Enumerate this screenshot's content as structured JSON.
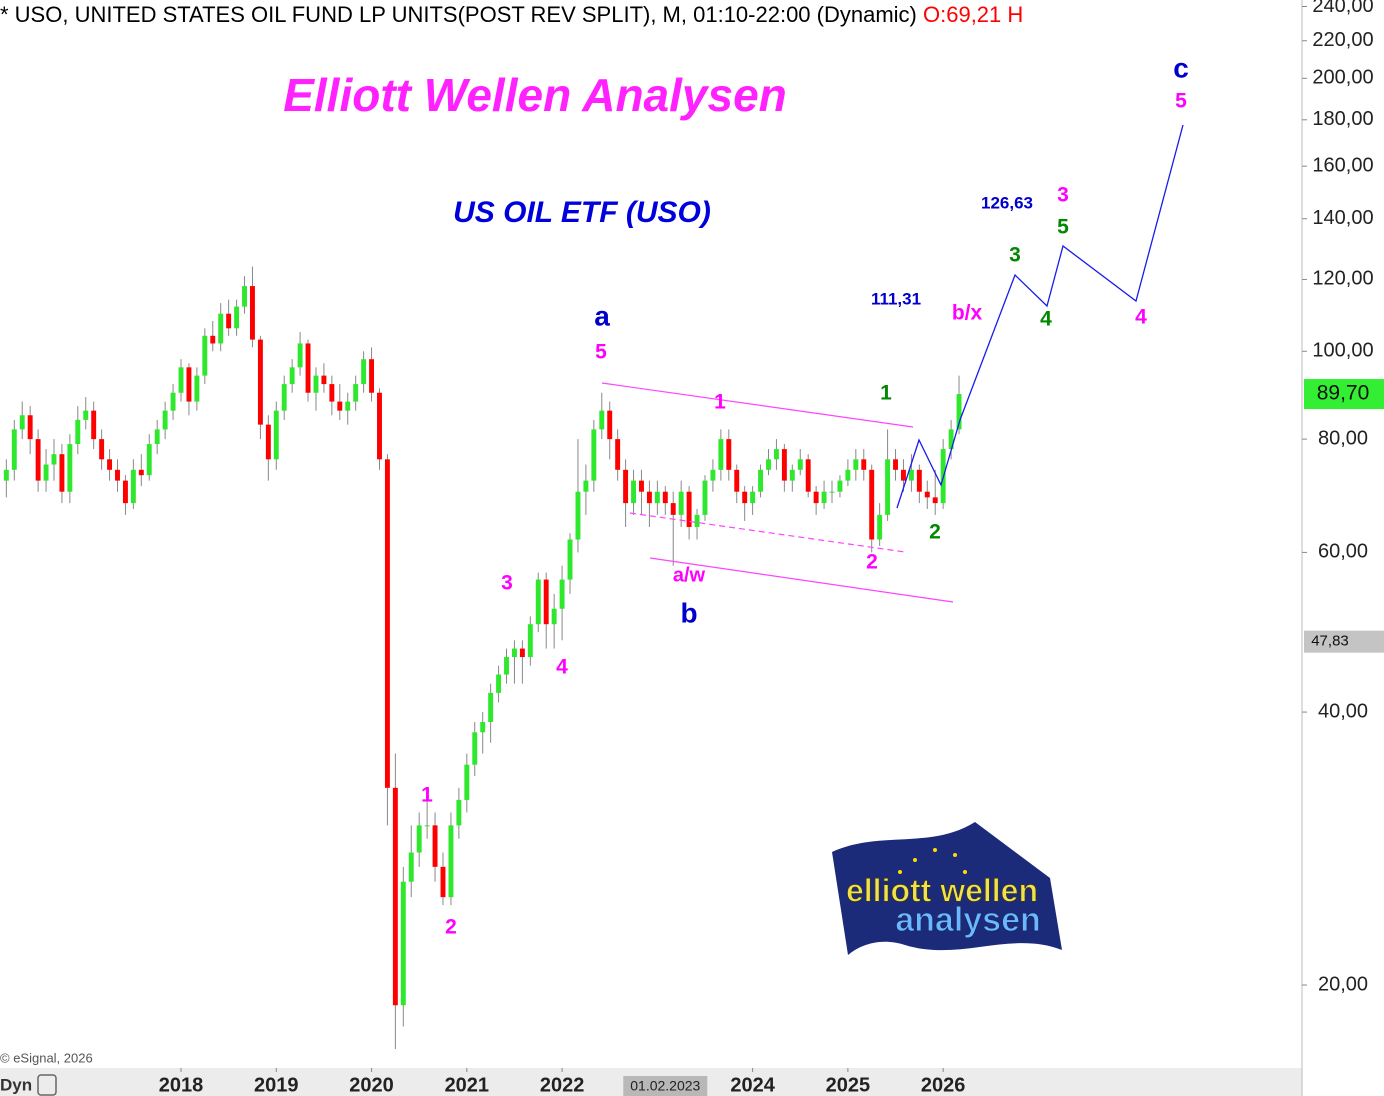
{
  "chart_data": {
    "type": "candlestick",
    "title": "* USO, UNITED STATES OIL FUND LP UNITS(POST REV SPLIT), M, 01:10-22:00 (Dynamic) ",
    "title_quote": "O:69,21 H",
    "heading": "Elliott Wellen Analysen",
    "subtitle": "US OIL ETF (USO)",
    "copyright": "© eSignal, 2026",
    "mode_label": "Dyn",
    "logo": [
      "elliott wellen",
      "analysen"
    ],
    "log_scale": true,
    "up_color": "#2ee82e",
    "down_color": "#ff0000",
    "ylim": [
      16.2,
      244
    ],
    "yticks": [
      {
        "value": 20,
        "label": "20,00"
      },
      {
        "value": 40,
        "label": "40,00"
      },
      {
        "value": 60,
        "label": "60,00"
      },
      {
        "value": 80,
        "label": "80,00"
      },
      {
        "value": 100,
        "label": "100,00"
      },
      {
        "value": 120,
        "label": "120,00"
      },
      {
        "value": 140,
        "label": "140,00"
      },
      {
        "value": 160,
        "label": "160,00"
      },
      {
        "value": 180,
        "label": "180,00"
      },
      {
        "value": 200,
        "label": "200,00"
      },
      {
        "value": 220,
        "label": "220,00"
      },
      {
        "value": 240,
        "label": "240,00"
      }
    ],
    "xlim": [
      -0.8,
      163.2
    ],
    "xticks": [
      {
        "value": 22,
        "label": "2018"
      },
      {
        "value": 34,
        "label": "2019"
      },
      {
        "value": 46,
        "label": "2020"
      },
      {
        "value": 58,
        "label": "2021"
      },
      {
        "value": 70,
        "label": "2022"
      },
      {
        "value": 94,
        "label": "2024"
      },
      {
        "value": 106,
        "label": "2025"
      },
      {
        "value": 118,
        "label": "2026"
      }
    ],
    "x_cursor": {
      "value": 83,
      "label": "01.02.2023"
    },
    "price_labels": [
      {
        "value": 89.7,
        "label": "89,70",
        "color": "#33ee33"
      },
      {
        "value": 47.83,
        "label": "47,83",
        "color": "#c4c4c4"
      }
    ],
    "candles": [
      [
        72,
        76,
        69,
        74
      ],
      [
        74,
        84,
        72,
        82
      ],
      [
        82,
        88,
        80,
        85
      ],
      [
        85,
        87,
        77,
        80
      ],
      [
        80,
        82,
        70,
        72
      ],
      [
        72,
        78,
        70,
        75
      ],
      [
        75,
        80,
        72,
        77
      ],
      [
        77,
        79,
        68,
        70
      ],
      [
        70,
        81,
        68,
        79
      ],
      [
        79,
        87,
        77,
        84
      ],
      [
        84,
        89,
        82,
        86
      ],
      [
        86,
        88,
        78,
        80
      ],
      [
        80,
        82,
        74,
        76
      ],
      [
        76,
        78,
        72,
        74
      ],
      [
        74,
        76,
        70,
        72
      ],
      [
        72,
        73,
        66,
        68
      ],
      [
        68,
        76,
        67,
        74
      ],
      [
        74,
        77,
        71,
        73
      ],
      [
        73,
        81,
        72,
        79
      ],
      [
        79,
        84,
        77,
        82
      ],
      [
        82,
        88,
        80,
        86
      ],
      [
        86,
        92,
        84,
        90
      ],
      [
        90,
        98,
        88,
        96
      ],
      [
        96,
        97,
        85,
        88
      ],
      [
        88,
        96,
        86,
        94
      ],
      [
        94,
        106,
        92,
        104
      ],
      [
        104,
        108,
        100,
        102
      ],
      [
        102,
        113,
        100,
        110
      ],
      [
        110,
        114,
        104,
        106
      ],
      [
        106,
        114,
        104,
        112
      ],
      [
        112,
        121,
        110,
        118
      ],
      [
        118,
        124,
        101,
        103
      ],
      [
        103,
        104,
        80,
        83
      ],
      [
        83,
        85,
        72,
        76
      ],
      [
        76,
        88,
        74,
        86
      ],
      [
        86,
        94,
        84,
        92
      ],
      [
        92,
        98,
        90,
        96
      ],
      [
        96,
        105,
        94,
        102
      ],
      [
        102,
        103,
        88,
        90
      ],
      [
        90,
        96,
        86,
        94
      ],
      [
        94,
        97,
        90,
        92
      ],
      [
        92,
        94,
        85,
        88
      ],
      [
        88,
        92,
        84,
        86
      ],
      [
        86,
        90,
        83,
        88
      ],
      [
        88,
        94,
        86,
        92
      ],
      [
        92,
        100,
        90,
        98
      ],
      [
        98,
        101,
        88,
        90
      ],
      [
        90,
        91,
        74,
        76
      ],
      [
        76,
        77,
        30,
        33
      ],
      [
        33,
        36,
        17,
        19
      ],
      [
        19,
        27,
        18,
        26
      ],
      [
        26,
        30,
        25,
        28
      ],
      [
        28,
        31,
        27,
        30
      ],
      [
        30,
        32,
        29,
        30
      ],
      [
        30,
        31,
        26,
        27
      ],
      [
        27,
        28,
        24.5,
        25
      ],
      [
        25,
        31,
        24.5,
        30
      ],
      [
        30,
        33,
        29,
        32
      ],
      [
        32,
        36,
        31,
        35
      ],
      [
        35,
        39,
        34,
        38
      ],
      [
        38,
        40,
        36,
        39
      ],
      [
        39,
        43,
        37,
        42
      ],
      [
        42,
        45,
        41,
        44
      ],
      [
        44,
        47,
        43,
        46
      ],
      [
        46,
        48,
        43,
        47
      ],
      [
        47,
        48,
        43,
        46
      ],
      [
        46,
        51,
        45,
        50
      ],
      [
        50,
        57,
        49,
        56
      ],
      [
        56,
        57,
        47,
        50
      ],
      [
        50,
        54,
        47,
        52
      ],
      [
        52,
        58,
        48,
        56
      ],
      [
        56,
        63,
        54,
        62
      ],
      [
        62,
        80,
        60,
        70
      ],
      [
        70,
        75,
        66,
        72
      ],
      [
        72,
        84,
        70,
        82
      ],
      [
        82,
        90,
        80,
        86
      ],
      [
        86,
        88,
        76,
        80
      ],
      [
        80,
        82,
        72,
        74
      ],
      [
        74,
        76,
        64,
        68
      ],
      [
        68,
        74,
        66,
        72
      ],
      [
        72,
        74,
        66,
        70
      ],
      [
        70,
        72,
        64,
        68
      ],
      [
        68,
        72,
        66,
        70
      ],
      [
        70,
        71,
        66,
        68
      ],
      [
        68,
        70,
        58,
        66
      ],
      [
        66,
        72,
        64,
        70
      ],
      [
        70,
        71,
        62,
        64
      ],
      [
        64,
        67,
        62,
        66
      ],
      [
        66,
        73,
        65,
        72
      ],
      [
        72,
        76,
        70,
        74
      ],
      [
        74,
        82,
        72,
        80
      ],
      [
        80,
        82,
        72,
        74
      ],
      [
        74,
        75,
        68,
        70
      ],
      [
        70,
        71,
        65,
        68
      ],
      [
        68,
        71,
        66,
        70
      ],
      [
        70,
        75,
        69,
        74
      ],
      [
        74,
        78,
        73,
        76
      ],
      [
        76,
        80,
        74,
        78
      ],
      [
        78,
        79,
        70,
        72
      ],
      [
        72,
        75,
        70,
        74
      ],
      [
        74,
        78,
        73,
        76
      ],
      [
        76,
        77,
        69,
        70
      ],
      [
        70,
        71,
        66,
        68
      ],
      [
        68,
        72,
        67,
        70
      ],
      [
        70,
        72,
        68,
        70
      ],
      [
        70,
        73,
        69,
        72
      ],
      [
        72,
        76,
        71,
        74
      ],
      [
        74,
        78,
        72,
        76
      ],
      [
        76,
        78,
        72,
        74
      ],
      [
        74,
        75,
        60,
        62
      ],
      [
        62,
        68,
        61,
        66
      ],
      [
        66,
        82,
        65,
        76
      ],
      [
        76,
        78,
        72,
        74
      ],
      [
        74,
        76,
        70,
        72
      ],
      [
        72,
        77,
        70,
        74
      ],
      [
        74,
        75,
        68,
        70
      ],
      [
        70,
        72,
        67,
        69
      ],
      [
        69,
        74,
        66,
        68
      ],
      [
        68,
        80,
        67,
        78
      ],
      [
        78,
        84,
        76,
        82
      ],
      [
        82,
        94,
        81,
        89.7
      ]
    ],
    "wave_labels": [
      {
        "text": "a",
        "color": "#0000cc"
      },
      {
        "text": "5",
        "color": "#ff00ff"
      },
      {
        "text": "1",
        "color": "#ff00ff"
      },
      {
        "text": "1",
        "color": "#008800"
      },
      {
        "text": "2",
        "color": "#ff00ff"
      },
      {
        "text": "2",
        "color": "#008800"
      },
      {
        "text": "a/w",
        "color": "#ff00ff"
      },
      {
        "text": "b",
        "color": "#0000cc"
      },
      {
        "text": "3",
        "color": "#ff00ff"
      },
      {
        "text": "4",
        "color": "#ff00ff"
      },
      {
        "text": "1",
        "color": "#ff00ff"
      },
      {
        "text": "2",
        "color": "#ff00ff"
      },
      {
        "text": "b/x",
        "color": "#ff00ff"
      },
      {
        "text": "111,31",
        "color": "#0000cc"
      },
      {
        "text": "126,63",
        "color": "#0000cc"
      },
      {
        "text": "3",
        "color": "#008800"
      },
      {
        "text": "4",
        "color": "#008800"
      },
      {
        "text": "3",
        "color": "#ff00ff"
      },
      {
        "text": "5",
        "color": "#008800"
      },
      {
        "text": "4",
        "color": "#ff00ff"
      },
      {
        "text": "c",
        "color": "#0000cc"
      },
      {
        "text": "5",
        "color": "#ff00ff"
      }
    ]
  }
}
